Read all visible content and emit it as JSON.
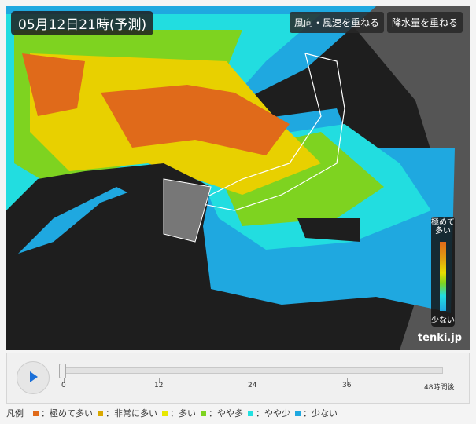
{
  "map": {
    "title": "05月12日21時(予測)",
    "wind_button": "風向・風速を重ねる",
    "rain_button": "降水量を重ねる",
    "scale": {
      "top": "極めて多い",
      "bottom": "少ない"
    },
    "logo": "tenki.jp"
  },
  "player": {
    "play_icon": "play-icon",
    "progress": 0,
    "ticks": [
      "0",
      "12",
      "24",
      "36",
      "48時間後"
    ]
  },
  "legend": {
    "label": "凡例",
    "items": [
      {
        "label": "：極めて多い",
        "color": "#e06a1a"
      },
      {
        "label": "：非常に多い",
        "color": "#d9a800"
      },
      {
        "label": "：多い",
        "color": "#e8e800"
      },
      {
        "label": "：やや多",
        "color": "#7ed320"
      },
      {
        "label": "：やや少",
        "color": "#22e0e0"
      },
      {
        "label": "：少ない",
        "color": "#1fa8e0"
      }
    ]
  }
}
